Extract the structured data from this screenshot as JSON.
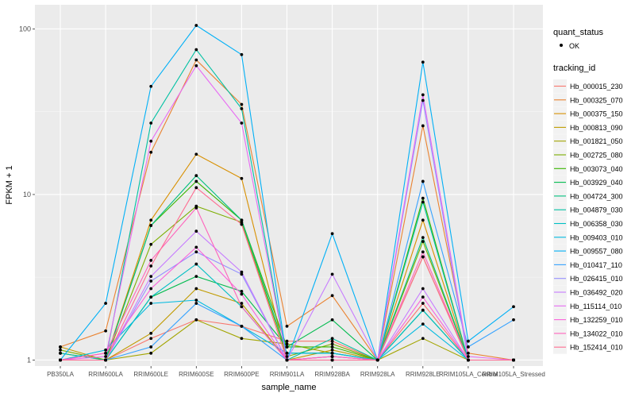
{
  "chart_data": {
    "type": "line",
    "xlabel": "sample_name",
    "ylabel": "FPKM + 1",
    "y_scale": "log10",
    "ylim": [
      0.92,
      140
    ],
    "y_ticks": [
      1,
      10,
      100
    ],
    "y_tick_labels": [
      "1",
      "10",
      "100"
    ],
    "grid": true,
    "legend_position": "right",
    "categories": [
      "PB350LA",
      "RRIM600LA",
      "RRIM600LE",
      "RRIM600SE",
      "RRIM600PE",
      "RRIM901LA",
      "RRIM928BA",
      "RRIM928LA",
      "RRIM928LE",
      "RRIM105LA_Control",
      "RRIM105LA_Stressed"
    ],
    "category_labels": [
      "PB350LA",
      "RRIM600LA",
      "RRIM600LE",
      "RRIM600SE",
      "RRIM600PE",
      "RRIM901LA",
      "RRIM928BA",
      "RRIM928LA",
      "RRIM928LE",
      "RRIM105LA_Control",
      "RRIM105LA_Stressed"
    ],
    "legend_quant": {
      "title": "quant_status",
      "items": [
        "OK"
      ]
    },
    "legend_tracking_title": "tracking_id",
    "series": [
      {
        "name": "Hb_000015_230",
        "color": "#F8766D",
        "values": [
          1.0,
          1.0,
          1.35,
          1.75,
          1.6,
          1.3,
          1.3,
          1.0,
          2.2,
          1.0,
          1.0
        ]
      },
      {
        "name": "Hb_000325_070",
        "color": "#EA8331",
        "values": [
          1.2,
          1.5,
          18.0,
          65.0,
          35.0,
          1.6,
          2.45,
          1.0,
          26.0,
          1.1,
          1.0
        ]
      },
      {
        "name": "Hb_000375_150",
        "color": "#D89000",
        "values": [
          1.1,
          1.0,
          7.0,
          17.5,
          12.5,
          1.0,
          1.05,
          1.0,
          7.0,
          1.0,
          1.0
        ]
      },
      {
        "name": "Hb_000813_090",
        "color": "#C09B00",
        "values": [
          1.2,
          1.0,
          1.45,
          2.7,
          2.2,
          1.0,
          1.15,
          1.0,
          4.2,
          1.0,
          1.0
        ]
      },
      {
        "name": "Hb_001821_050",
        "color": "#A3A500",
        "values": [
          1.0,
          1.0,
          1.1,
          1.75,
          1.35,
          1.25,
          1.1,
          1.0,
          1.35,
          1.0,
          1.0
        ]
      },
      {
        "name": "Hb_002725_080",
        "color": "#7CAE00",
        "values": [
          1.15,
          1.0,
          5.0,
          8.5,
          6.8,
          1.05,
          1.25,
          1.0,
          5.2,
          1.0,
          1.0
        ]
      },
      {
        "name": "Hb_003073_040",
        "color": "#39B600",
        "values": [
          1.0,
          1.0,
          6.5,
          12.0,
          7.0,
          1.2,
          1.2,
          1.0,
          9.5,
          1.0,
          1.0
        ]
      },
      {
        "name": "Hb_003929_040",
        "color": "#00BB4E",
        "values": [
          1.0,
          1.0,
          2.4,
          3.2,
          2.6,
          1.2,
          1.75,
          1.0,
          2.0,
          1.0,
          1.0
        ]
      },
      {
        "name": "Hb_004724_300",
        "color": "#00BF7D",
        "values": [
          1.0,
          1.0,
          6.5,
          13.0,
          7.0,
          1.1,
          1.1,
          1.0,
          5.5,
          1.0,
          1.0
        ]
      },
      {
        "name": "Hb_004879_030",
        "color": "#00C1A3",
        "values": [
          1.1,
          1.0,
          27.0,
          75.0,
          33.0,
          1.0,
          1.35,
          1.0,
          9.0,
          1.0,
          1.0
        ]
      },
      {
        "name": "Hb_006358_030",
        "color": "#00BFC4",
        "values": [
          1.0,
          1.0,
          2.4,
          3.8,
          2.1,
          1.0,
          1.0,
          1.0,
          2.0,
          1.0,
          1.0
        ]
      },
      {
        "name": "Hb_009403_010",
        "color": "#00BAE0",
        "values": [
          1.0,
          1.15,
          2.2,
          2.3,
          1.6,
          1.1,
          1.1,
          1.0,
          1.65,
          1.0,
          1.0
        ]
      },
      {
        "name": "Hb_009557_080",
        "color": "#00B0F6",
        "values": [
          1.0,
          2.2,
          45.0,
          105.0,
          70.0,
          1.0,
          5.8,
          1.0,
          63.0,
          1.3,
          2.1
        ]
      },
      {
        "name": "Hb_010417_110",
        "color": "#35A2FF",
        "values": [
          1.0,
          1.0,
          1.2,
          2.2,
          1.6,
          1.0,
          1.0,
          1.0,
          12.0,
          1.2,
          1.75
        ]
      },
      {
        "name": "Hb_026415_010",
        "color": "#9590FF",
        "values": [
          1.0,
          1.0,
          3.0,
          4.5,
          3.3,
          1.0,
          1.05,
          1.0,
          37.0,
          1.0,
          1.0
        ]
      },
      {
        "name": "Hb_036492_020",
        "color": "#C77CFF",
        "values": [
          1.0,
          1.0,
          3.2,
          6.0,
          3.4,
          1.0,
          3.3,
          1.0,
          2.7,
          1.0,
          1.0
        ]
      },
      {
        "name": "Hb_115114_010",
        "color": "#E76BF3",
        "values": [
          1.0,
          1.05,
          21.0,
          60.0,
          27.0,
          1.0,
          1.05,
          1.0,
          40.0,
          1.05,
          1.0
        ]
      },
      {
        "name": "Hb_132259_010",
        "color": "#FA62DB",
        "values": [
          1.0,
          1.1,
          2.7,
          4.8,
          2.5,
          1.0,
          1.0,
          1.0,
          2.4,
          1.0,
          1.0
        ]
      },
      {
        "name": "Hb_134022_010",
        "color": "#FF62BC",
        "values": [
          1.0,
          1.1,
          4.0,
          8.3,
          2.1,
          1.0,
          1.05,
          1.0,
          4.5,
          1.0,
          1.0
        ]
      },
      {
        "name": "Hb_152414_010",
        "color": "#FF6C91",
        "values": [
          1.0,
          1.0,
          3.7,
          11.0,
          6.6,
          1.0,
          1.0,
          1.0,
          4.2,
          1.0,
          1.0
        ]
      }
    ]
  }
}
